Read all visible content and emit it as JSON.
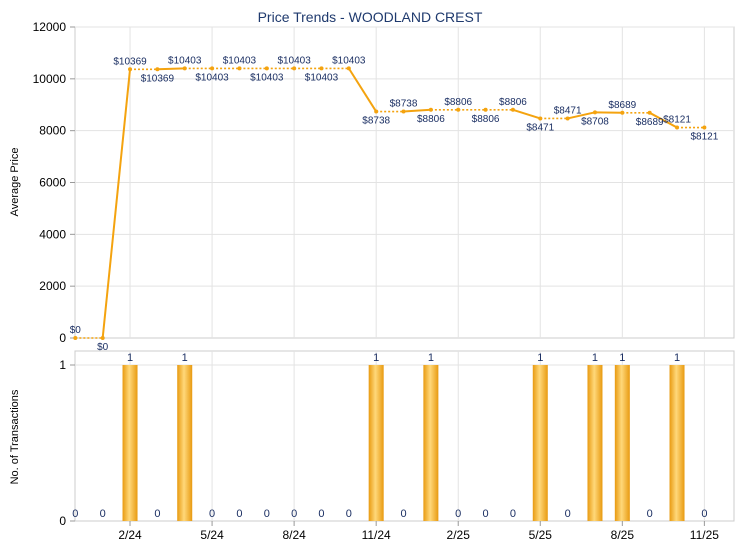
{
  "chart_data": [
    {
      "type": "line",
      "title": "Price Trends - WOODLAND CREST",
      "xlabel": "",
      "ylabel": "Average Price",
      "ylim": [
        0,
        12000
      ],
      "yticks": [
        0,
        2000,
        4000,
        6000,
        8000,
        10000,
        12000
      ],
      "grid": true,
      "color": "#f4a30f",
      "values": [
        0,
        0,
        10369,
        10369,
        10403,
        10403,
        10403,
        10403,
        10403,
        10403,
        10403,
        8738,
        8738,
        8806,
        8806,
        8806,
        8806,
        8471,
        8471,
        8708,
        8689,
        8689,
        8121,
        8121
      ],
      "labels": [
        "$0",
        "$0",
        "$10369",
        "$10369",
        "$10403",
        "$10403",
        "$10403",
        "$10403",
        "$10403",
        "$10403",
        "$10403",
        "$8738",
        "$8738",
        "$8806",
        "$8806",
        "$8806",
        "$8806",
        "$8471",
        "$8471",
        "$8708",
        "$8689",
        "$8689",
        "$8121",
        "$8121"
      ]
    },
    {
      "type": "bar",
      "xlabel": "",
      "ylabel": "No. of Transactions",
      "ylim": [
        0,
        1
      ],
      "yticks": [
        0,
        1
      ],
      "grid": true,
      "color": "#f4a30f",
      "values": [
        0,
        0,
        1,
        0,
        1,
        0,
        0,
        0,
        0,
        0,
        0,
        1,
        0,
        1,
        0,
        0,
        0,
        1,
        0,
        1,
        1,
        0,
        1,
        0
      ],
      "xticks": [
        {
          "index": 2,
          "label": "2/24"
        },
        {
          "index": 5,
          "label": "5/24"
        },
        {
          "index": 8,
          "label": "8/24"
        },
        {
          "index": 11,
          "label": "11/24"
        },
        {
          "index": 14,
          "label": "2/25"
        },
        {
          "index": 17,
          "label": "5/25"
        },
        {
          "index": 20,
          "label": "8/25"
        },
        {
          "index": 23,
          "label": "11/25"
        }
      ]
    }
  ]
}
